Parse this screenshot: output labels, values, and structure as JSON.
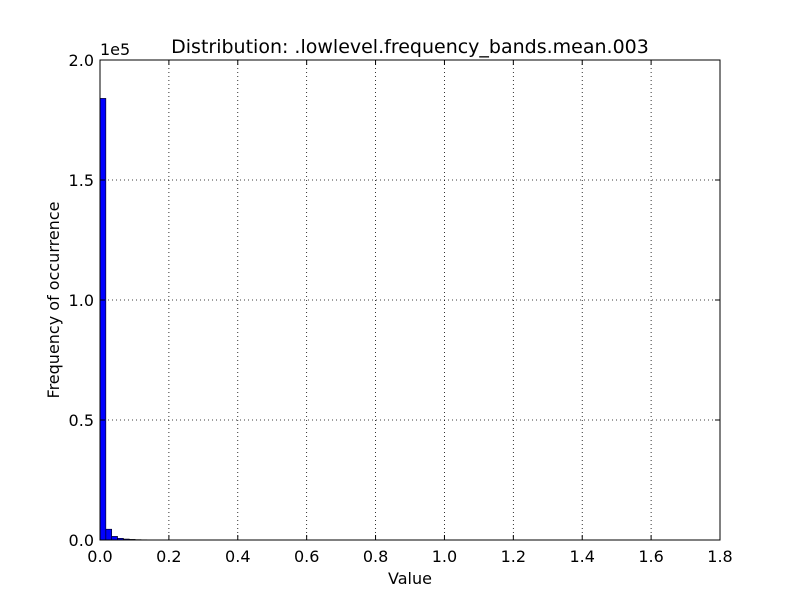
{
  "chart_data": {
    "type": "bar",
    "title": "Distribution: .lowlevel.frequency_bands.mean.003",
    "xlabel": "Value",
    "ylabel": "Frequency of occurrence",
    "y_multiplier_label": "1e5",
    "y_scale_factor": 100000,
    "xlim": [
      0.0,
      1.8
    ],
    "ylim": [
      0,
      200000
    ],
    "x_ticks": [
      0.0,
      0.2,
      0.4,
      0.6,
      0.8,
      1.0,
      1.2,
      1.4,
      1.6,
      1.8
    ],
    "x_tick_labels": [
      "0.0",
      "0.2",
      "0.4",
      "0.6",
      "0.8",
      "1.0",
      "1.2",
      "1.4",
      "1.6",
      "1.8"
    ],
    "y_ticks": [
      0,
      50000,
      100000,
      150000,
      200000
    ],
    "y_tick_labels": [
      "0.0",
      "0.5",
      "1.0",
      "1.5",
      "2.0"
    ],
    "grid": true,
    "bar_color": "#0000ff",
    "bin_range": [
      0.0,
      1.7
    ],
    "bin_width": 0.017,
    "values": [
      184000,
      4500,
      1500,
      700,
      400,
      250,
      150,
      100,
      80,
      60,
      50,
      40,
      30,
      25,
      20,
      15,
      12,
      10,
      8,
      6,
      5,
      4,
      3,
      3,
      2,
      2,
      2,
      1,
      1,
      1,
      1,
      1,
      1,
      1,
      1,
      1,
      1,
      1,
      1,
      1,
      1,
      1,
      1,
      1,
      1,
      1,
      1,
      1,
      1,
      1,
      1,
      1,
      1,
      1,
      1,
      1,
      1,
      1,
      1,
      1,
      1,
      1,
      1,
      1,
      1,
      1,
      1,
      1,
      1,
      1,
      1,
      1,
      1,
      1,
      1,
      1,
      1,
      1,
      1,
      1,
      1,
      1,
      1,
      1,
      1,
      1,
      1,
      1,
      1,
      1,
      1,
      1,
      1,
      1,
      1,
      1,
      1,
      1,
      1,
      1
    ]
  }
}
